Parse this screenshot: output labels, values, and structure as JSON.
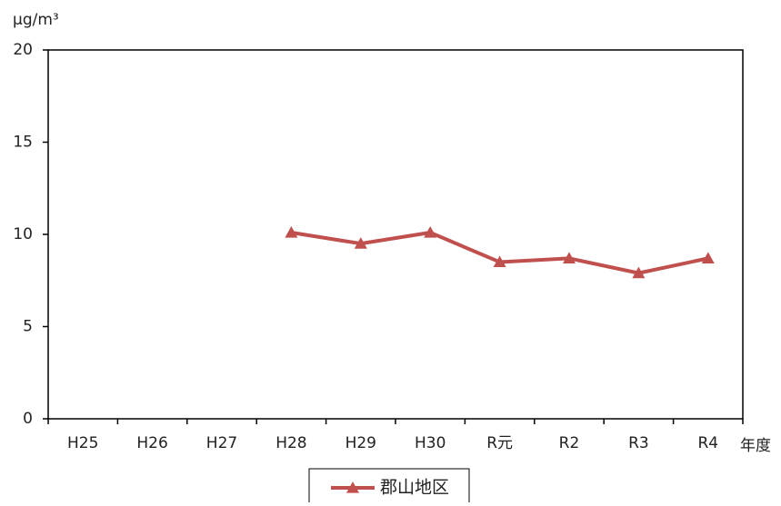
{
  "chart_data": {
    "type": "line",
    "y_label": "μg/m³",
    "x_label": "年度",
    "categories": [
      "H25",
      "H26",
      "H27",
      "H28",
      "H29",
      "H30",
      "R元",
      "R2",
      "R3",
      "R4"
    ],
    "series": [
      {
        "name": "郡山地区",
        "color": "#c0504d",
        "values": [
          null,
          null,
          null,
          10.1,
          9.5,
          10.1,
          8.5,
          8.7,
          7.9,
          8.7
        ]
      }
    ],
    "ylim": [
      0,
      20
    ],
    "yticks": [
      0,
      5,
      10,
      15,
      20
    ],
    "grid": false,
    "legend": "bottom"
  }
}
